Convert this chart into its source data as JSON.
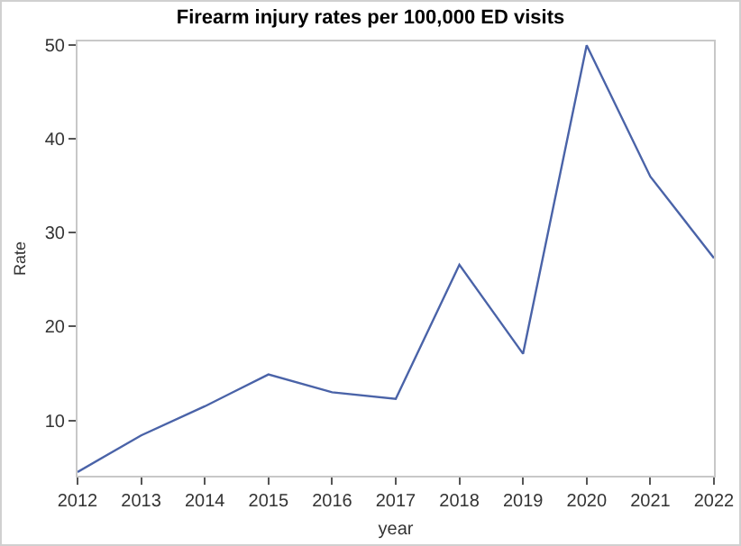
{
  "chart_data": {
    "type": "line",
    "title": "Firearm injury rates per 100,000 ED visits",
    "xlabel": "year",
    "ylabel": "Rate",
    "x": [
      2012,
      2013,
      2014,
      2015,
      2016,
      2017,
      2018,
      2019,
      2020,
      2021,
      2022
    ],
    "series": [
      {
        "color": "#4a63a8",
        "values": [
          4.5,
          8.4,
          11.5,
          14.9,
          13.0,
          12.3,
          26.6,
          17.1,
          50.0,
          36.0,
          27.3
        ]
      }
    ],
    "xlim": [
      2012,
      2022
    ],
    "xticks": [
      2012,
      2013,
      2014,
      2015,
      2016,
      2017,
      2018,
      2019,
      2020,
      2021,
      2022
    ],
    "ylim": [
      4.1,
      50.4
    ],
    "yticks": [
      10,
      20,
      30,
      40,
      50
    ],
    "grid": false,
    "marker": "none",
    "line_style": "solid"
  }
}
